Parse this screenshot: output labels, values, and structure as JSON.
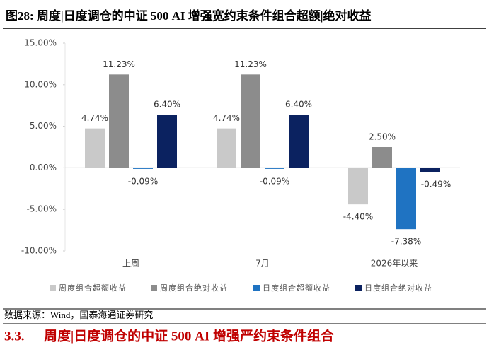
{
  "figure_title": "图28:  周度|日度调仓的中证 500 AI 增强宽约束条件组合超额|绝对收益",
  "chart_data": {
    "type": "bar",
    "categories": [
      "上周",
      "7月",
      "2026年以来"
    ],
    "series": [
      {
        "name": "周度组合超额收益",
        "color": "#c9c9c9",
        "values": [
          4.74,
          4.74,
          -4.4
        ],
        "value_labels": [
          "4.74%",
          "4.74%",
          "-4.40%"
        ]
      },
      {
        "name": "周度组合绝对收益",
        "color": "#8c8c8c",
        "values": [
          11.23,
          11.23,
          2.5
        ],
        "value_labels": [
          "11.23%",
          "11.23%",
          "2.50%"
        ]
      },
      {
        "name": "日度组合超额收益",
        "color": "#1f73c2",
        "values": [
          -0.09,
          -0.09,
          -7.38
        ],
        "value_labels": [
          "-0.09%",
          "-0.09%",
          "-7.38%"
        ]
      },
      {
        "name": "日度组合绝对收益",
        "color": "#0b2260",
        "values": [
          6.4,
          6.4,
          -0.49
        ],
        "value_labels": [
          "6.40%",
          "6.40%",
          "-0.49%"
        ]
      }
    ],
    "ylim": [
      -10,
      15
    ],
    "yticks": [
      {
        "value": -10,
        "label": "-10.00%"
      },
      {
        "value": -5,
        "label": "-5.00%"
      },
      {
        "value": 0,
        "label": "0.00%"
      },
      {
        "value": 5,
        "label": "5.00%"
      },
      {
        "value": 10,
        "label": "10.00%"
      },
      {
        "value": 15,
        "label": "15.00%"
      }
    ],
    "grid": false,
    "legend": "bottom"
  },
  "source": "数据来源：Wind，国泰海通证券研究",
  "section": {
    "number": "3.3.",
    "title": "周度|日度调仓的中证 500 AI 增强严约束条件组合"
  }
}
